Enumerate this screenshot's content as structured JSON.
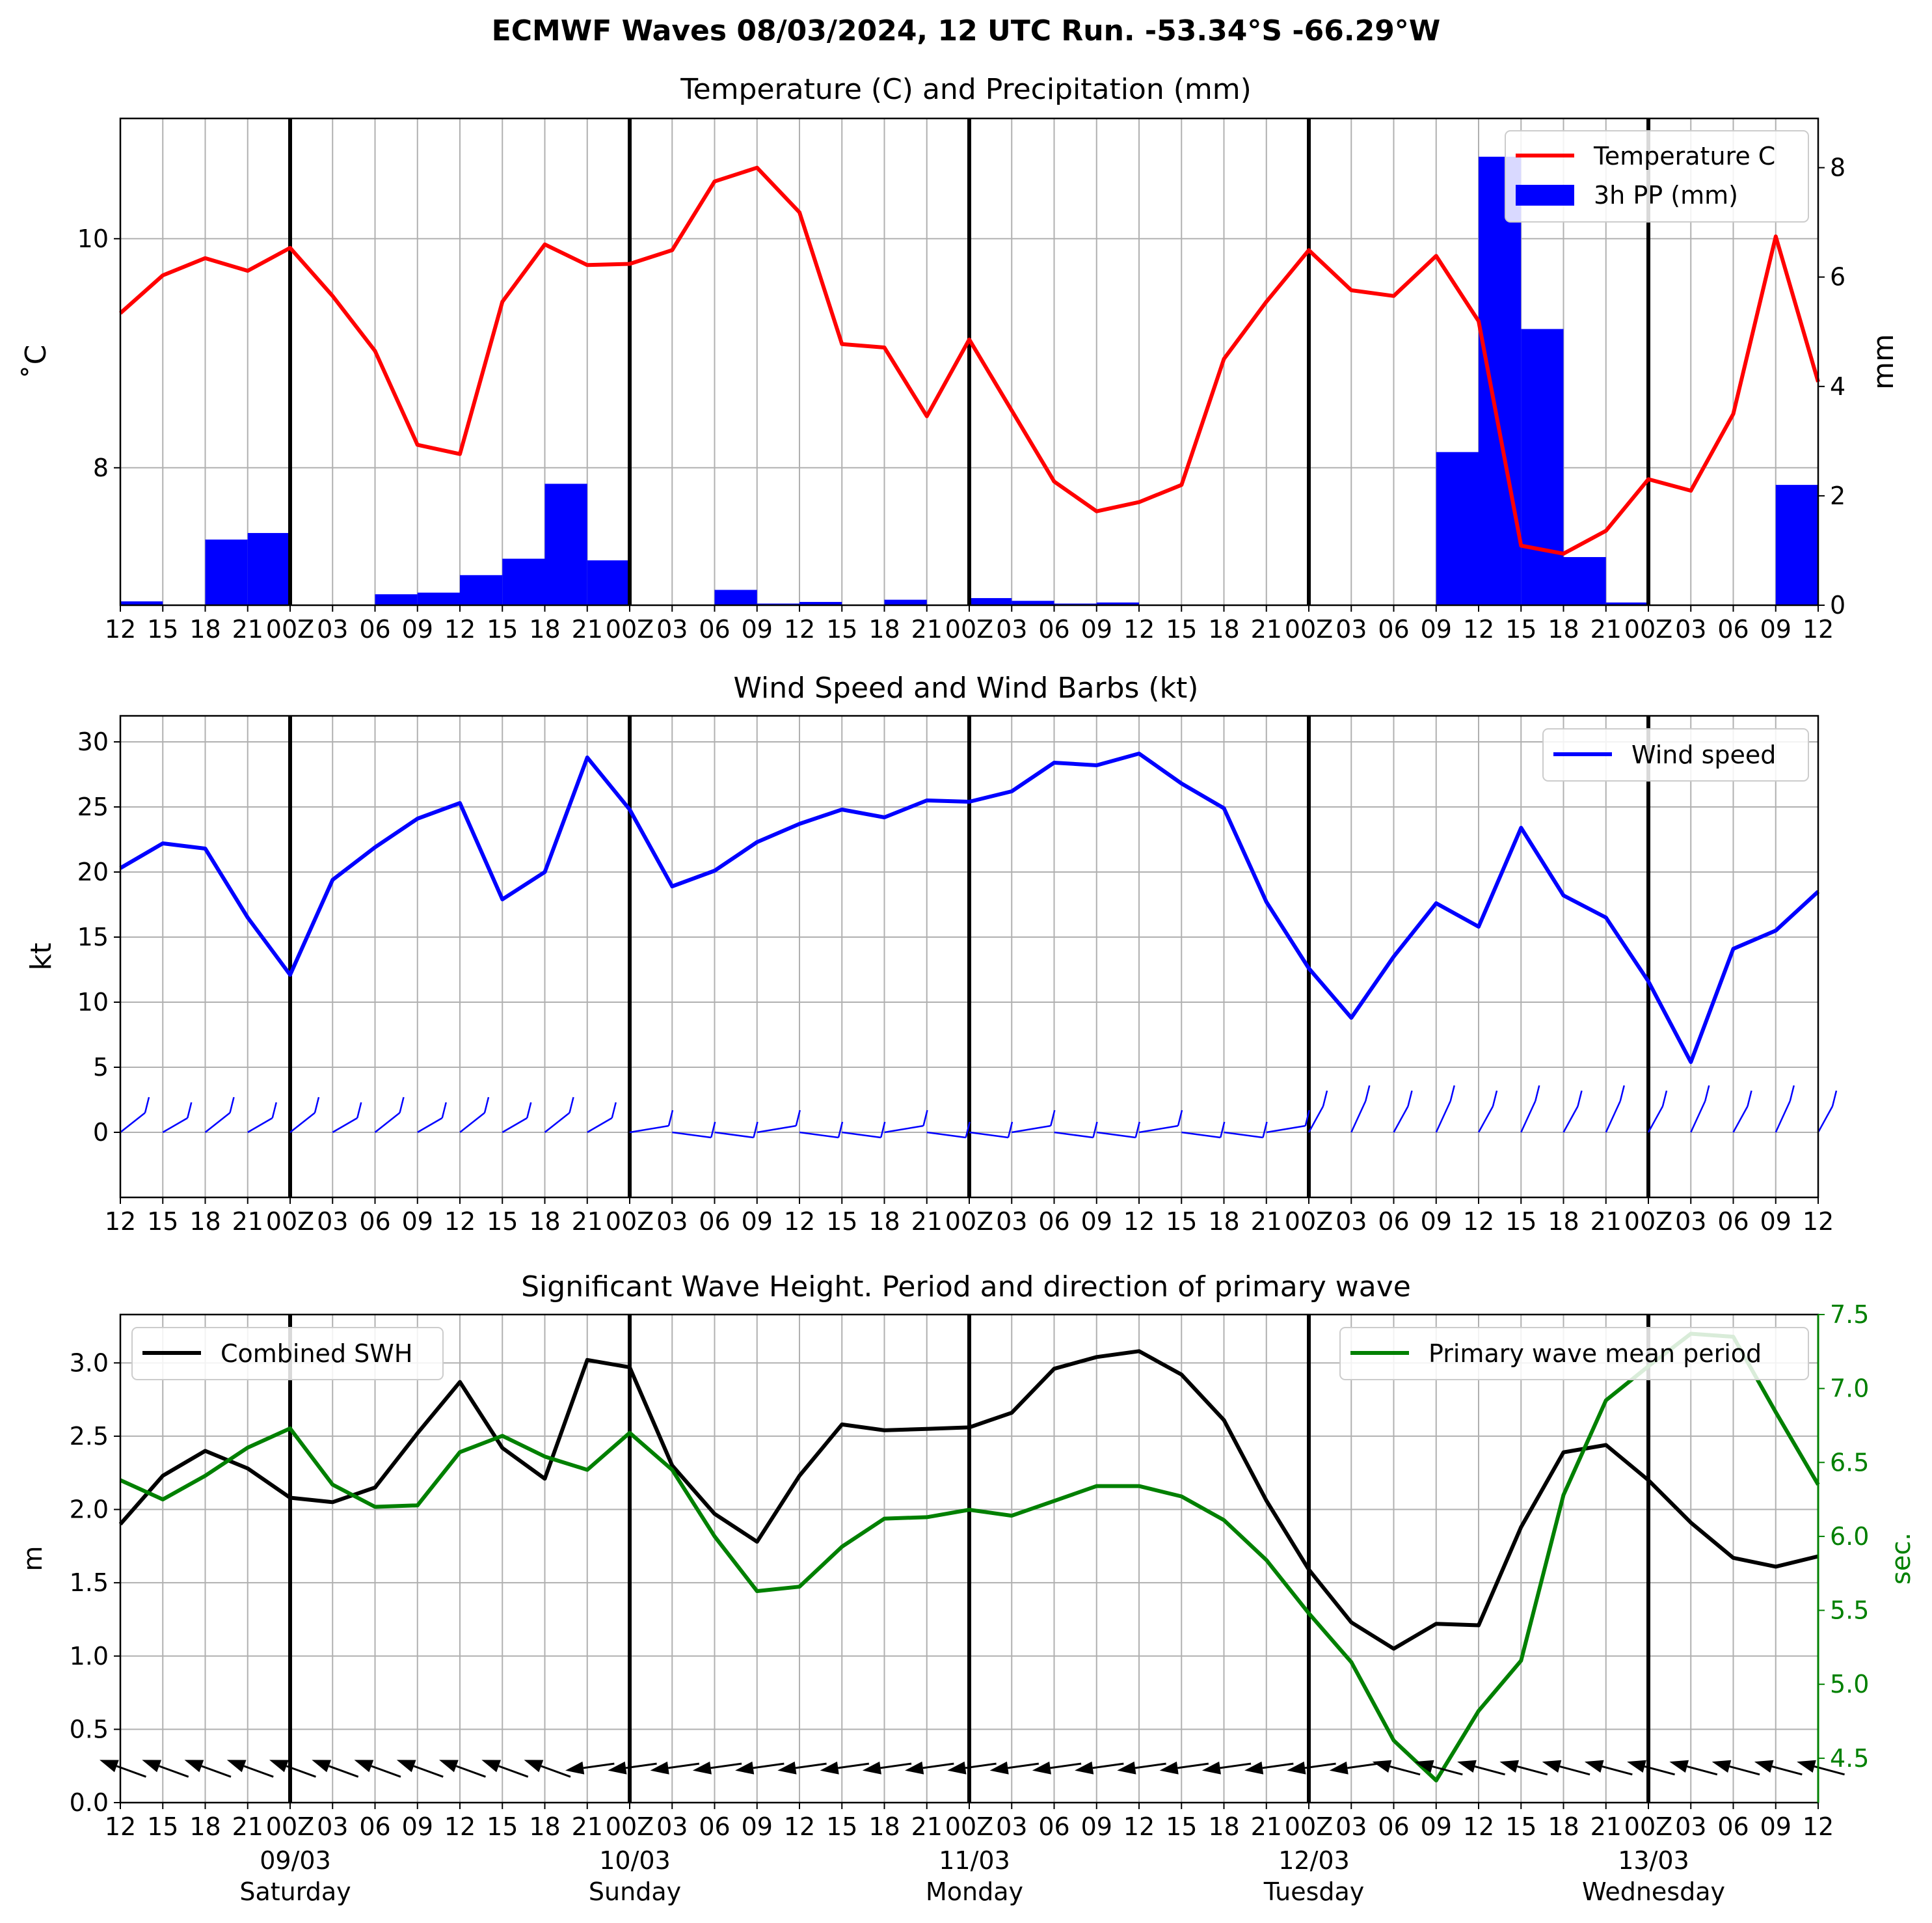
{
  "suptitle": "ECMWF Waves 08/03/2024, 12 UTC Run. -53.34°S -66.29°W",
  "x_tick_labels": [
    "12",
    "15",
    "18",
    "21",
    "00Z",
    "03",
    "06",
    "09",
    "12",
    "15",
    "18",
    "21",
    "00Z",
    "03",
    "06",
    "09",
    "12",
    "15",
    "18",
    "21",
    "00Z",
    "03",
    "06",
    "09",
    "12",
    "15",
    "18",
    "21",
    "00Z",
    "03",
    "06",
    "09",
    "12",
    "15",
    "18",
    "21",
    "00Z",
    "03",
    "06",
    "09",
    "12"
  ],
  "day_labels": [
    {
      "date": "09/03",
      "day": "Saturday"
    },
    {
      "date": "10/03",
      "day": "Sunday"
    },
    {
      "date": "11/03",
      "day": "Monday"
    },
    {
      "date": "12/03",
      "day": "Tuesday"
    },
    {
      "date": "13/03",
      "day": "Wednesday"
    }
  ],
  "colors": {
    "temperature": "#ff0000",
    "precip": "#0000ff",
    "wind": "#0000ff",
    "swh": "#000000",
    "period": "#008000",
    "grid": "#b0b0b0"
  },
  "chart_data": [
    {
      "type": "line+bar",
      "title": "Temperature (C) and Precipitation (mm)",
      "ylabel": "$^\\circ$C",
      "ylabel_display": "˚C",
      "y2label": "mm",
      "ylim": [
        6.8,
        11.05
      ],
      "y2lim": [
        0,
        8.9
      ],
      "yticks": [
        8,
        10
      ],
      "y2ticks": [
        0,
        2,
        4,
        6,
        8
      ],
      "x_hours_from_run": [
        0,
        3,
        6,
        9,
        12,
        15,
        18,
        21,
        24,
        27,
        30,
        33,
        36,
        39,
        42,
        45,
        48,
        51,
        54,
        57,
        60,
        63,
        66,
        69,
        72,
        75,
        78,
        81,
        84,
        87,
        90,
        93,
        96,
        99,
        102,
        105,
        108,
        111,
        114,
        117,
        120
      ],
      "legend": [
        "Temperature C",
        "3h PP (mm)"
      ],
      "legend_position": "upper right",
      "grid": true,
      "series": [
        {
          "name": "Temperature C",
          "kind": "line",
          "values": [
            9.35,
            9.68,
            9.83,
            9.72,
            9.92,
            9.5,
            9.02,
            8.2,
            8.12,
            9.45,
            9.95,
            9.77,
            9.78,
            9.9,
            10.5,
            10.62,
            10.23,
            9.08,
            9.05,
            8.45,
            9.12,
            8.5,
            7.88,
            7.62,
            7.7,
            7.85,
            8.95,
            9.45,
            9.9,
            9.55,
            9.5,
            9.85,
            9.28,
            7.32,
            7.25,
            7.45,
            7.9,
            7.8,
            8.47,
            10.02,
            8.75
          ]
        },
        {
          "name": "3h PP (mm)",
          "kind": "bar",
          "values": [
            0.07,
            0,
            1.2,
            1.32,
            0,
            0,
            0.2,
            0.23,
            0.55,
            0.85,
            2.22,
            0.82,
            0,
            0,
            0.28,
            0.03,
            0.06,
            0,
            0.1,
            0,
            0.13,
            0.08,
            0.03,
            0.05,
            0.01,
            0,
            0,
            0,
            0,
            0,
            0,
            2.8,
            8.2,
            5.05,
            0.88,
            0.05,
            0,
            0,
            0,
            2.2
          ]
        }
      ]
    },
    {
      "type": "line",
      "title": "Wind Speed and Wind Barbs (kt)",
      "ylabel": "kt",
      "ylim": [
        -5,
        32
      ],
      "yticks": [
        0,
        5,
        10,
        15,
        20,
        25,
        30
      ],
      "legend": [
        "Wind speed"
      ],
      "legend_position": "upper right",
      "grid": true,
      "series": [
        {
          "name": "Wind speed",
          "values": [
            20.3,
            22.2,
            21.8,
            16.5,
            12.1,
            19.4,
            21.9,
            24.1,
            25.3,
            17.9,
            20,
            28.8,
            24.8,
            18.9,
            20.1,
            22.3,
            23.7,
            24.8,
            24.2,
            25.5,
            25.4,
            26.2,
            28.4,
            28.2,
            29.1,
            26.8,
            24.9,
            17.7,
            12.6,
            8.8,
            13.5,
            17.6,
            15.8,
            23.4,
            18.2,
            16.5,
            11.6,
            5.4,
            14.1,
            15.5,
            18.5
          ]
        }
      ],
      "barbs_shown": true
    },
    {
      "type": "line",
      "title": "Significant Wave Height. Period and direction of primary wave",
      "ylabel": "m",
      "y2label": "sec.",
      "ylim": [
        0,
        3.33
      ],
      "y2lim": [
        4.2,
        7.5
      ],
      "yticks": [
        0.0,
        0.5,
        1.0,
        1.5,
        2.0,
        2.5,
        3.0
      ],
      "y2ticks": [
        4.5,
        5.0,
        5.5,
        6.0,
        6.5,
        7.0,
        7.5
      ],
      "legend_left": [
        "Combined SWH"
      ],
      "legend_right": [
        "Primary wave mean period"
      ],
      "grid": true,
      "series": [
        {
          "name": "Combined SWH",
          "axis": "left",
          "values": [
            1.9,
            2.23,
            2.4,
            2.28,
            2.08,
            2.05,
            2.15,
            2.52,
            2.87,
            2.42,
            2.21,
            3.02,
            2.97,
            2.3,
            1.97,
            1.78,
            2.23,
            2.58,
            2.54,
            2.55,
            2.56,
            2.66,
            2.96,
            3.04,
            3.08,
            2.92,
            2.61,
            2.06,
            1.59,
            1.23,
            1.05,
            1.22,
            1.21,
            1.88,
            2.39,
            2.44,
            2.2,
            1.91,
            1.67,
            1.61,
            1.68
          ]
        },
        {
          "name": "Primary wave mean period",
          "axis": "right",
          "values": [
            6.38,
            6.25,
            6.41,
            6.6,
            6.73,
            6.35,
            6.2,
            6.21,
            6.57,
            6.68,
            6.54,
            6.45,
            6.7,
            6.45,
            6.0,
            5.63,
            5.66,
            5.93,
            6.12,
            6.13,
            6.18,
            6.14,
            6.24,
            6.34,
            6.34,
            6.27,
            6.11,
            5.84,
            5.48,
            5.15,
            4.62,
            4.35,
            4.82,
            5.16,
            6.28,
            6.92,
            7.15,
            7.37,
            7.35,
            6.84,
            6.35
          ]
        }
      ],
      "direction_arrows_shown": true
    }
  ]
}
